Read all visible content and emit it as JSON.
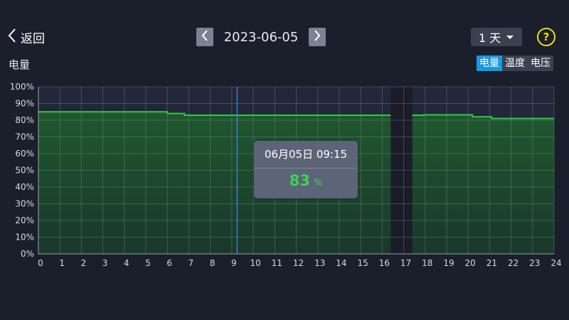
{
  "header": {
    "back_label": "返回",
    "date": "2023-06-05",
    "range": "1 天",
    "help_label": "?"
  },
  "section_title": "电量",
  "tabs": [
    {
      "label": "电量",
      "active": true
    },
    {
      "label": "温度",
      "active": false
    },
    {
      "label": "电压",
      "active": false
    }
  ],
  "colors": {
    "background": "#1b1f2b",
    "line": "#33c944",
    "fill": "#1f5a2e",
    "active_tab": "#169adf",
    "cursor": "#3b8fe8",
    "help": "#f2d81a"
  },
  "tooltip": {
    "time": "06月05日 09:15",
    "value": "83",
    "unit": "%"
  },
  "chart_data": {
    "type": "area",
    "xlabel": "",
    "ylabel": "",
    "xlim": [
      0,
      24
    ],
    "ylim": [
      0,
      100
    ],
    "x_ticks": [
      "0",
      "1",
      "2",
      "3",
      "4",
      "5",
      "6",
      "7",
      "8",
      "9",
      "10",
      "11",
      "12",
      "13",
      "14",
      "15",
      "16",
      "17",
      "18",
      "19",
      "20",
      "21",
      "22",
      "23",
      "24"
    ],
    "y_ticks": [
      "0%",
      "10%",
      "20%",
      "30%",
      "40%",
      "50%",
      "60%",
      "70%",
      "80%",
      "90%",
      "100%"
    ],
    "grid": true,
    "cursor_x": 9.25,
    "gap": [
      16.4,
      17.4
    ],
    "series": [
      {
        "values": [
          [
            0,
            85
          ],
          [
            6,
            85
          ],
          [
            6,
            84
          ],
          [
            6.8,
            84
          ],
          [
            6.8,
            83
          ],
          [
            16.4,
            83
          ]
        ]
      },
      {
        "values": [
          [
            17.4,
            83
          ],
          [
            17.9,
            83
          ],
          [
            17.9,
            83.2
          ],
          [
            20.2,
            83.2
          ],
          [
            20.2,
            82
          ],
          [
            21.1,
            82
          ],
          [
            21.1,
            81
          ],
          [
            24,
            81
          ]
        ]
      }
    ]
  }
}
